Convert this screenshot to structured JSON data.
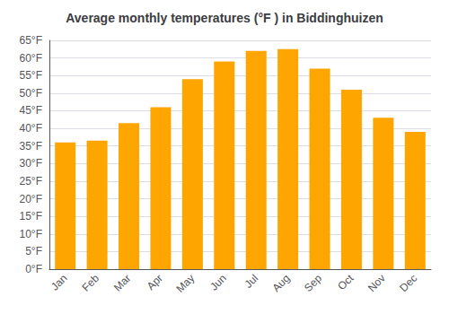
{
  "chart_data": {
    "type": "bar",
    "title": "Average monthly temperatures (°F ) in Biddinghuizen",
    "categories": [
      "Jan",
      "Feb",
      "Mar",
      "Apr",
      "May",
      "Jun",
      "Jul",
      "Aug",
      "Sep",
      "Oct",
      "Nov",
      "Dec"
    ],
    "values": [
      36,
      36.5,
      41.5,
      46,
      54,
      59,
      62,
      62.5,
      57,
      51,
      43,
      39
    ],
    "color": "#FFA500",
    "ylim": [
      0,
      65
    ],
    "yticks": [
      {
        "value": 0,
        "label": "0°F"
      },
      {
        "value": 5,
        "label": "5°F"
      },
      {
        "value": 10,
        "label": "10°F"
      },
      {
        "value": 15,
        "label": "15°F"
      },
      {
        "value": 20,
        "label": "20°F"
      },
      {
        "value": 25,
        "label": "25°F"
      },
      {
        "value": 30,
        "label": "30°F"
      },
      {
        "value": 35,
        "label": "35°F"
      },
      {
        "value": 40,
        "label": "40°F"
      },
      {
        "value": 45,
        "label": "45°F"
      },
      {
        "value": 50,
        "label": "50°F"
      },
      {
        "value": 55,
        "label": "55°F"
      },
      {
        "value": 60,
        "label": "60°F"
      },
      {
        "value": 65,
        "label": "65°F"
      }
    ],
    "grid": true
  }
}
